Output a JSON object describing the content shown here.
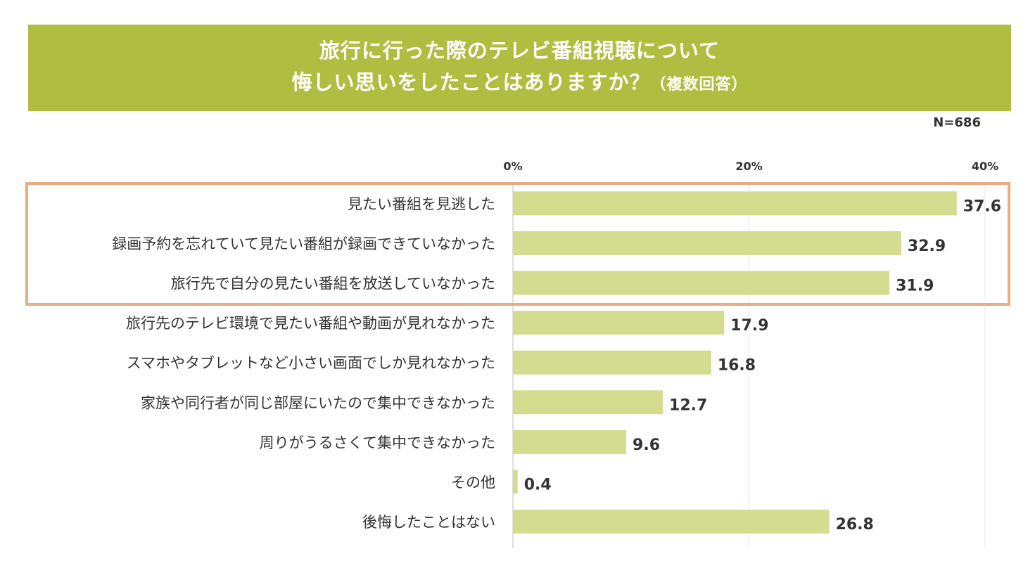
{
  "title": {
    "line1": "旅行に行った際のテレビ番組視聴について",
    "line2": "悔しい思いをしたことはありますか？",
    "suffix": "（複数回答）"
  },
  "sample_size": "N=686",
  "colors": {
    "banner": "#afbd40",
    "bar": "#d3dc8f",
    "highlight": "#eaab83",
    "text": "#333333"
  },
  "chart_data": {
    "type": "bar",
    "orientation": "horizontal",
    "title": "旅行に行った際のテレビ番組視聴について悔しい思いをしたことはありますか？（複数回答）",
    "categories": [
      "見たい番組を見逃した",
      "録画予約を忘れていて見たい番組が録画できていなかった",
      "旅行先で自分の見たい番組を放送していなかった",
      "旅行先のテレビ環境で見たい番組や動画が見れなかった",
      "スマホやタブレットなど小さい画面でしか見れなかった",
      "家族や同行者が同じ部屋にいたので集中できなかった",
      "周りがうるさくて集中できなかった",
      "その他",
      "後悔したことはない"
    ],
    "values": [
      37.6,
      32.9,
      31.9,
      17.9,
      16.8,
      12.7,
      9.6,
      0.4,
      26.8
    ],
    "value_labels": [
      "37.6",
      "32.9",
      "31.9",
      "17.9",
      "16.8",
      "12.7",
      "9.6",
      "0.4",
      "26.8"
    ],
    "xlim": [
      0,
      40
    ],
    "xticks": [
      0,
      20,
      40
    ],
    "xtick_labels": [
      "0%",
      "20%",
      "40%"
    ],
    "highlighted_categories": [
      0,
      1,
      2
    ],
    "legend": "none"
  }
}
